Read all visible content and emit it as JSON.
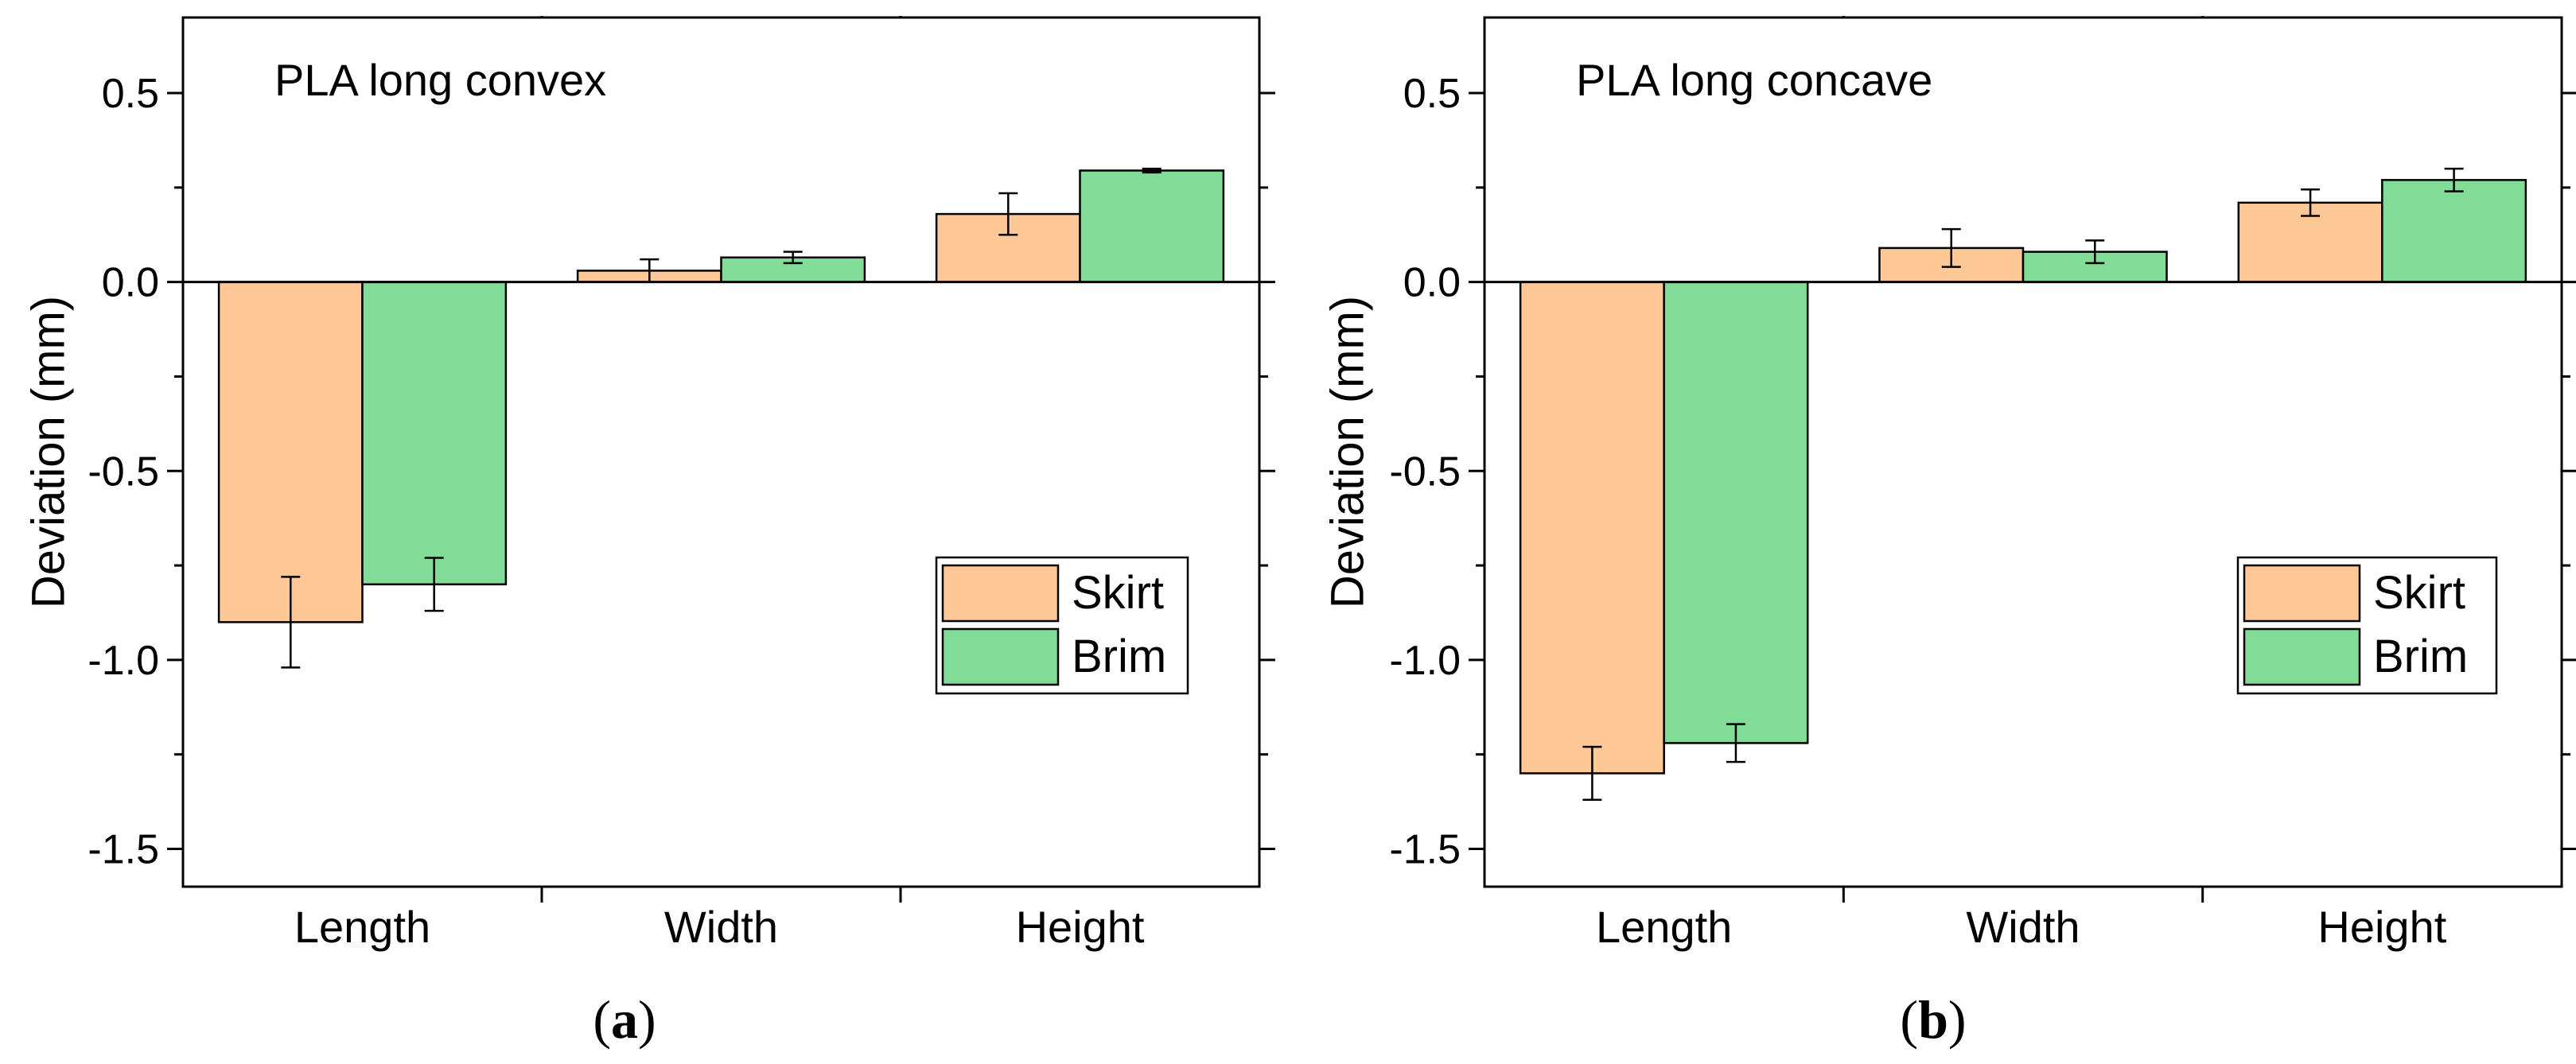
{
  "colors": {
    "skirt": "#FFC896",
    "brim": "#80DC96",
    "stroke": "#000000"
  },
  "chart_data": [
    {
      "type": "bar",
      "panel_label": "a",
      "title": "PLA long convex",
      "ylabel": "Deviation (mm)",
      "xlabel": "",
      "ylim": [
        -1.6,
        0.7
      ],
      "yticks": [
        0.5,
        0.0,
        -0.5,
        -1.0,
        -1.5
      ],
      "ytick_labels": [
        "0.5",
        "0.0",
        "-0.5",
        "-1.0",
        "-1.5"
      ],
      "categories": [
        "Length",
        "Width",
        "Height"
      ],
      "series": [
        {
          "name": "Skirt",
          "values": [
            -0.9,
            0.03,
            0.18
          ],
          "errors": [
            0.12,
            0.03,
            0.055
          ]
        },
        {
          "name": "Brim",
          "values": [
            -0.8,
            0.065,
            0.295
          ],
          "errors": [
            0.07,
            0.015,
            0.005
          ]
        }
      ],
      "legend_position": "bottom-right"
    },
    {
      "type": "bar",
      "panel_label": "b",
      "title": "PLA long concave",
      "ylabel": "Deviation (mm)",
      "xlabel": "",
      "ylim": [
        -1.6,
        0.7
      ],
      "yticks": [
        0.5,
        0.0,
        -0.5,
        -1.0,
        -1.5
      ],
      "ytick_labels": [
        "0.5",
        "0.0",
        "-0.5",
        "-1.0",
        "-1.5"
      ],
      "categories": [
        "Length",
        "Width",
        "Height"
      ],
      "series": [
        {
          "name": "Skirt",
          "values": [
            -1.3,
            0.09,
            0.21
          ],
          "errors": [
            0.07,
            0.05,
            0.035
          ]
        },
        {
          "name": "Brim",
          "values": [
            -1.22,
            0.08,
            0.27
          ],
          "errors": [
            0.05,
            0.03,
            0.03
          ]
        }
      ],
      "legend_position": "bottom-right"
    }
  ]
}
